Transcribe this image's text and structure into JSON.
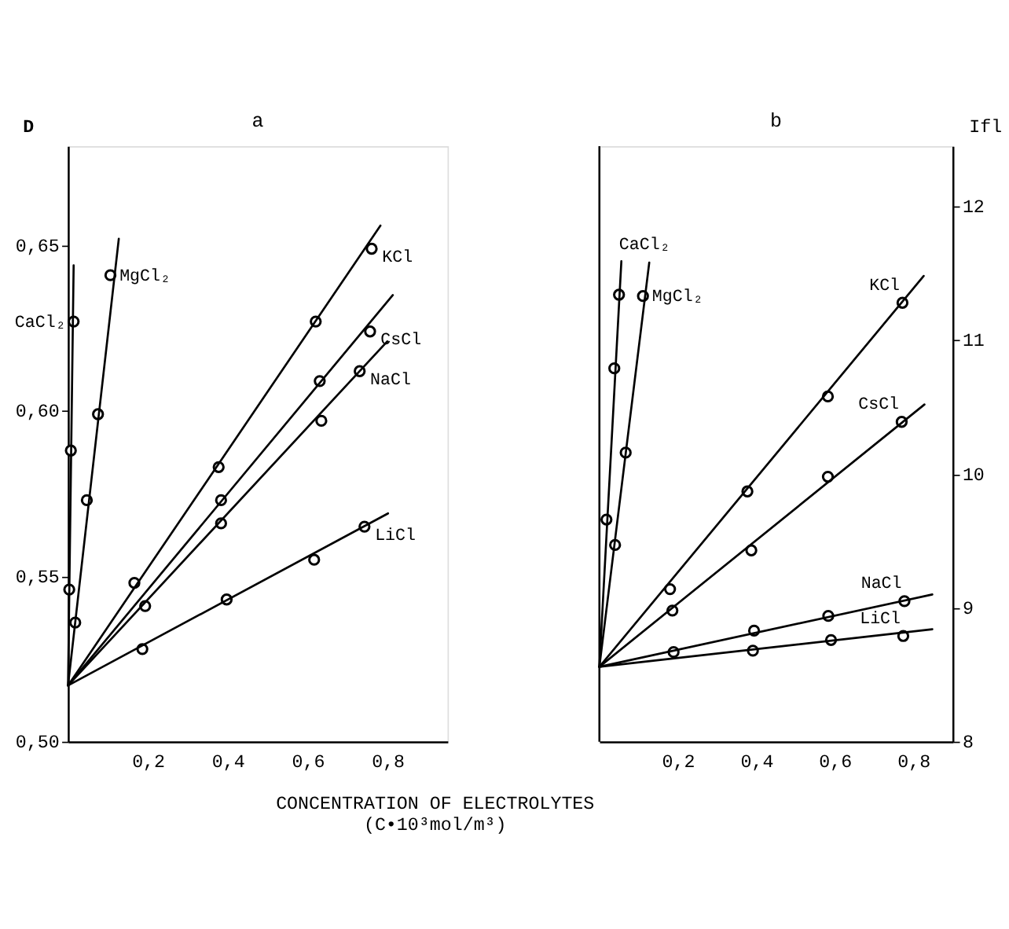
{
  "chart_data": [
    {
      "type": "scatter",
      "title": "a",
      "ylabel": "D",
      "xlabel": "CONCENTRATION OF ELECTROLYTES\n(C•10³mol/m³)",
      "grid": false,
      "marker": "circle",
      "xlim": [
        0,
        0.95
      ],
      "xticks": [
        {
          "value": 0.2,
          "label": "0,2"
        },
        {
          "value": 0.4,
          "label": "0,4"
        },
        {
          "value": 0.6,
          "label": "0,6"
        },
        {
          "value": 0.8,
          "label": "0,8"
        }
      ],
      "ylim": [
        0.5,
        0.68
      ],
      "yticks": [
        {
          "value": 0.5,
          "label": "0,50"
        },
        {
          "value": 0.55,
          "label": "0,55"
        },
        {
          "value": 0.6,
          "label": "0,60"
        },
        {
          "value": 0.65,
          "label": "0,65"
        }
      ],
      "series": [
        {
          "name": "CaCl₂",
          "color": "#000000",
          "x": [
            0.003,
            0.018,
            0.007,
            0.014
          ],
          "values": [
            0.546,
            0.536,
            0.588,
            0.627
          ]
        },
        {
          "name": "MgCl₂",
          "color": "#000000",
          "x": [
            0.047,
            0.075,
            0.106
          ],
          "values": [
            0.573,
            0.599,
            0.641
          ]
        },
        {
          "name": "KCl",
          "color": "#000000",
          "x": [
            0.166,
            0.377,
            0.62,
            0.76
          ],
          "values": [
            0.548,
            0.583,
            0.627,
            0.649
          ]
        },
        {
          "name": "CsCl",
          "color": "#000000",
          "x": [
            0.193,
            0.383,
            0.63,
            0.756
          ],
          "values": [
            0.541,
            0.573,
            0.609,
            0.624
          ]
        },
        {
          "name": "NaCl",
          "color": "#000000",
          "x": [
            0.383,
            0.634,
            0.73
          ],
          "values": [
            0.566,
            0.597,
            0.612
          ]
        },
        {
          "name": "LiCl",
          "color": "#000000",
          "x": [
            0.186,
            0.397,
            0.616,
            0.742
          ],
          "values": [
            0.528,
            0.543,
            0.555,
            0.565
          ]
        },
        {
          "type": "line",
          "marker": "none",
          "color": "#000000",
          "x": [
            0,
            0.014
          ],
          "values": [
            0.517,
            0.644
          ]
        },
        {
          "type": "line",
          "marker": "none",
          "color": "#000000",
          "x": [
            0,
            0.127
          ],
          "values": [
            0.517,
            0.652
          ]
        },
        {
          "type": "line",
          "marker": "none",
          "color": "#000000",
          "x": [
            0,
            0.782
          ],
          "values": [
            0.517,
            0.656
          ]
        },
        {
          "type": "line",
          "marker": "none",
          "color": "#000000",
          "x": [
            0,
            0.813
          ],
          "values": [
            0.517,
            0.635
          ]
        },
        {
          "type": "line",
          "marker": "none",
          "color": "#000000",
          "x": [
            0,
            0.799
          ],
          "values": [
            0.517,
            0.621
          ]
        },
        {
          "type": "line",
          "marker": "none",
          "color": "#000000",
          "x": [
            0,
            0.801
          ],
          "values": [
            0.517,
            0.569
          ]
        }
      ]
    },
    {
      "type": "scatter",
      "title": "b",
      "ylabel": "Ifl",
      "grid": false,
      "marker": "circle",
      "xlim": [
        0,
        0.9
      ],
      "xticks": [
        {
          "value": 0.2,
          "label": "0,2"
        },
        {
          "value": 0.4,
          "label": "0,4"
        },
        {
          "value": 0.6,
          "label": "0,6"
        },
        {
          "value": 0.8,
          "label": "0,8"
        }
      ],
      "ylim": [
        8,
        12.45
      ],
      "yticks": [
        8,
        9,
        10,
        11,
        12
      ],
      "series": [
        {
          "name": "CaCl₂",
          "color": "#000000",
          "x": [
            0.018,
            0.038,
            0.05
          ],
          "values": [
            9.66,
            10.79,
            11.34
          ]
        },
        {
          "name": "MgCl₂",
          "color": "#000000",
          "x": [
            0.04,
            0.067,
            0.111
          ],
          "values": [
            9.47,
            10.16,
            11.33
          ]
        },
        {
          "name": "KCl",
          "color": "#000000",
          "x": [
            0.18,
            0.377,
            0.582,
            0.772
          ],
          "values": [
            9.14,
            9.87,
            10.58,
            11.28
          ]
        },
        {
          "name": "CsCl",
          "color": "#000000",
          "x": [
            0.186,
            0.387,
            0.582,
            0.77
          ],
          "values": [
            8.98,
            9.43,
            9.98,
            10.39
          ]
        },
        {
          "name": "NaCl",
          "color": "#000000",
          "x": [
            0.189,
            0.394,
            0.583,
            0.777
          ],
          "values": [
            8.67,
            8.83,
            8.94,
            9.05
          ]
        },
        {
          "name": "LiCl",
          "color": "#000000",
          "x": [
            0.391,
            0.59,
            0.774
          ],
          "values": [
            8.68,
            8.76,
            8.79
          ]
        },
        {
          "type": "line",
          "marker": "none",
          "color": "#000000",
          "x": [
            0,
            0.056
          ],
          "values": [
            8.56,
            11.59
          ]
        },
        {
          "type": "line",
          "marker": "none",
          "color": "#000000",
          "x": [
            0,
            0.127
          ],
          "values": [
            8.56,
            11.58
          ]
        },
        {
          "type": "line",
          "marker": "none",
          "color": "#000000",
          "x": [
            0,
            0.826
          ],
          "values": [
            8.56,
            11.48
          ]
        },
        {
          "type": "line",
          "marker": "none",
          "color": "#000000",
          "x": [
            0,
            0.828
          ],
          "values": [
            8.56,
            10.52
          ]
        },
        {
          "type": "line",
          "marker": "none",
          "color": "#000000",
          "x": [
            0,
            0.848
          ],
          "values": [
            8.56,
            9.1
          ]
        },
        {
          "type": "line",
          "marker": "none",
          "color": "#000000",
          "x": [
            0,
            0.848
          ],
          "values": [
            8.56,
            8.84
          ]
        }
      ]
    }
  ]
}
